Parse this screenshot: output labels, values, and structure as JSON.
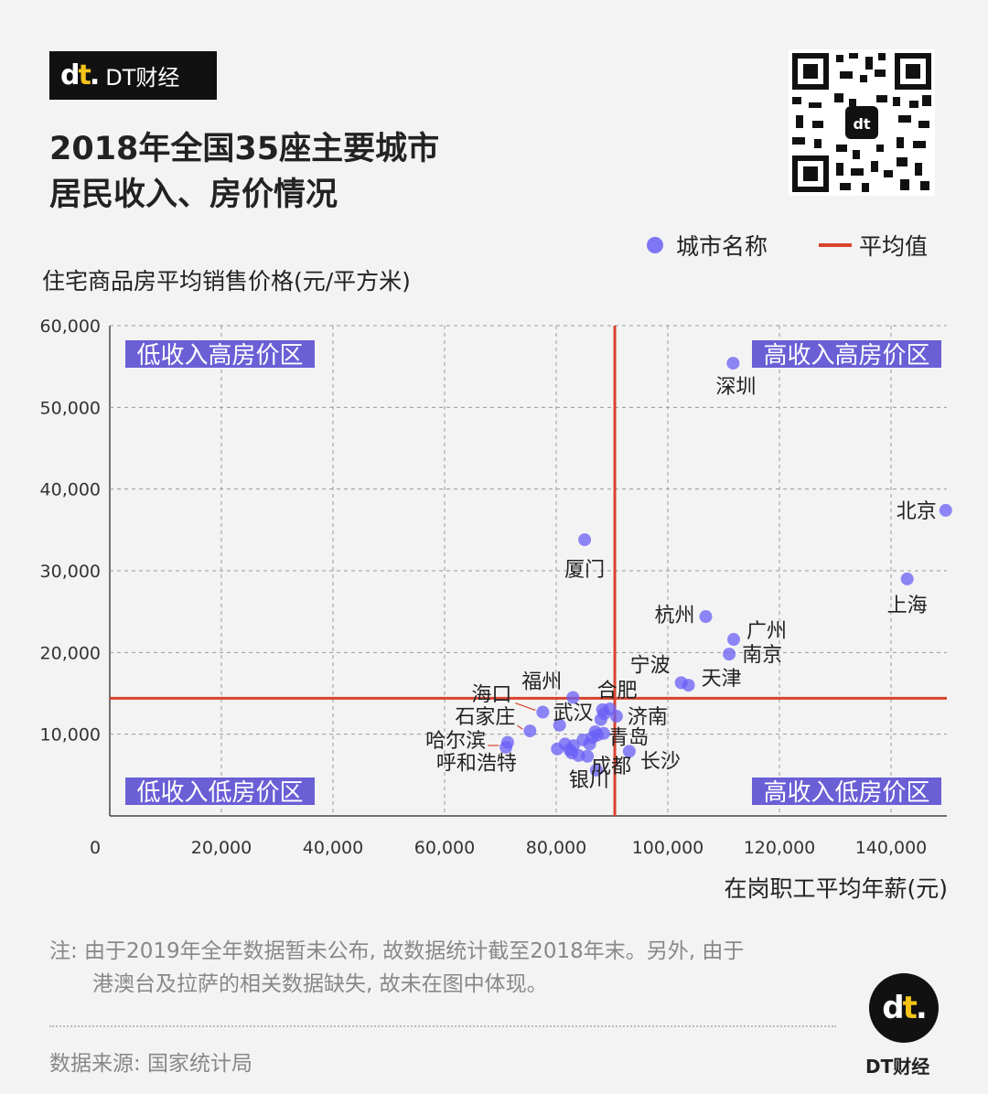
{
  "brand": {
    "logo": "dt",
    "name": "DT财经"
  },
  "title": {
    "line1": "2018年全国35座主要城市",
    "line2": "居民收入、房价情况"
  },
  "legend": {
    "dots": "城市名称",
    "line": "平均值"
  },
  "colors": {
    "dot": "#6a5ff5",
    "avg": "#d9432e",
    "zone_bg": "#6b5fd6",
    "zone_text": "#ffffff"
  },
  "chart_data": {
    "type": "scatter",
    "ylabel": "住宅商品房平均销售价格(元/平方米)",
    "xlabel": "在岗职工平均年薪(元)",
    "xlim": [
      0,
      150000
    ],
    "ylim": [
      0,
      60000
    ],
    "xticks": [
      {
        "v": 0,
        "label": "0"
      },
      {
        "v": 20000,
        "label": "20,000"
      },
      {
        "v": 40000,
        "label": "40,000"
      },
      {
        "v": 60000,
        "label": "60,000"
      },
      {
        "v": 80000,
        "label": "80,000"
      },
      {
        "v": 100000,
        "label": "100,000"
      },
      {
        "v": 120000,
        "label": "120,000"
      },
      {
        "v": 140000,
        "label": "140,000"
      }
    ],
    "yticks": [
      {
        "v": 10000,
        "label": "10,000"
      },
      {
        "v": 20000,
        "label": "20,000"
      },
      {
        "v": 30000,
        "label": "30,000"
      },
      {
        "v": 40000,
        "label": "40,000"
      },
      {
        "v": 50000,
        "label": "50,000"
      },
      {
        "v": 60000,
        "label": "60,000"
      }
    ],
    "average": {
      "x": 90500,
      "y": 14400
    },
    "zones": {
      "top_left": "低收入高房价区",
      "top_right": "高收入高房价区",
      "bottom_left": "低收入低房价区",
      "bottom_right": "高收入低房价区"
    },
    "points": [
      {
        "name": "深圳",
        "x": 111700,
        "y": 55400
      },
      {
        "name": "北京",
        "x": 149800,
        "y": 37400
      },
      {
        "name": "上海",
        "x": 142900,
        "y": 29000
      },
      {
        "name": "厦门",
        "x": 85100,
        "y": 33800
      },
      {
        "name": "杭州",
        "x": 106800,
        "y": 24400
      },
      {
        "name": "广州",
        "x": 111800,
        "y": 21600
      },
      {
        "name": "南京",
        "x": 111000,
        "y": 19800
      },
      {
        "name": "宁波",
        "x": 102400,
        "y": 16300
      },
      {
        "name": "天津",
        "x": 103700,
        "y": 16000
      },
      {
        "name": "福州",
        "x": 83000,
        "y": 14500
      },
      {
        "name": "合肥",
        "x": 88300,
        "y": 13000
      },
      {
        "name": "海口",
        "x": 77600,
        "y": 12700
      },
      {
        "name": "武汉",
        "x": 88600,
        "y": 12500
      },
      {
        "name": "济南",
        "x": 90800,
        "y": 12200
      },
      {
        "name": "石家庄",
        "x": 75300,
        "y": 10400
      },
      {
        "name": "哈尔滨",
        "x": 71000,
        "y": 8400
      },
      {
        "name": "青岛",
        "x": 87400,
        "y": 9900
      },
      {
        "name": "长沙",
        "x": 93100,
        "y": 7900
      },
      {
        "name": "成都",
        "x": 85600,
        "y": 7300
      },
      {
        "name": "呼和浩特",
        "x": 71300,
        "y": 9000
      },
      {
        "name": "银川",
        "x": 87200,
        "y": 5600
      },
      {
        "name": "",
        "x": 80600,
        "y": 11100
      },
      {
        "name": "",
        "x": 80200,
        "y": 8200
      },
      {
        "name": "",
        "x": 81600,
        "y": 8800
      },
      {
        "name": "",
        "x": 82400,
        "y": 8100
      },
      {
        "name": "",
        "x": 83100,
        "y": 8600
      },
      {
        "name": "",
        "x": 84000,
        "y": 7400
      },
      {
        "name": "",
        "x": 86000,
        "y": 8800
      },
      {
        "name": "",
        "x": 87000,
        "y": 10300
      },
      {
        "name": "",
        "x": 88500,
        "y": 10100
      },
      {
        "name": "",
        "x": 89600,
        "y": 13100
      },
      {
        "name": "",
        "x": 84800,
        "y": 9300
      },
      {
        "name": "",
        "x": 82800,
        "y": 7700
      },
      {
        "name": "",
        "x": 86500,
        "y": 9600
      },
      {
        "name": "",
        "x": 88000,
        "y": 11800
      }
    ]
  },
  "note": {
    "line1": "注: 由于2019年全年数据暂未公布, 故数据统计截至2018年末。另外, 由于",
    "line2": "港澳台及拉萨的相关数据缺失, 故未在图中体现。"
  },
  "source": "数据来源: 国家统计局",
  "badge": {
    "logo": "dt",
    "label": "DT财经"
  }
}
